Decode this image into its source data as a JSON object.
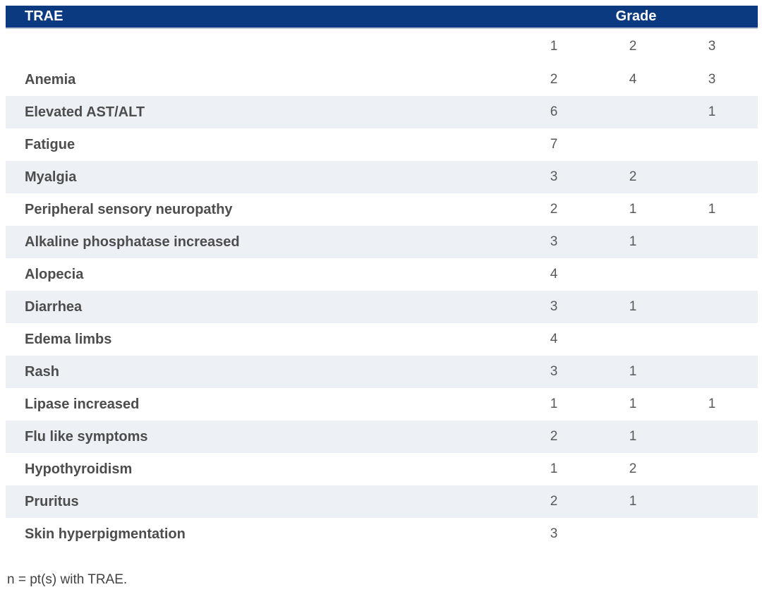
{
  "colors": {
    "header_bg": "#0b3a80",
    "header_text": "#ffffff",
    "header_border": "#b9c5d9",
    "row_shaded": "#edf0f5",
    "label_text": "#4d4d4d",
    "number_text": "#595959"
  },
  "table": {
    "header": {
      "trae_label": "TRAE",
      "grade_label": "Grade"
    },
    "grade_columns": [
      "1",
      "2",
      "3"
    ],
    "rows": [
      {
        "name": "Anemia",
        "g1": "2",
        "g2": "4",
        "g3": "3"
      },
      {
        "name": "Elevated AST/ALT",
        "g1": "6",
        "g2": "",
        "g3": "1"
      },
      {
        "name": "Fatigue",
        "g1": "7",
        "g2": "",
        "g3": ""
      },
      {
        "name": "Myalgia",
        "g1": "3",
        "g2": "2",
        "g3": ""
      },
      {
        "name": "Peripheral sensory neuropathy",
        "g1": "2",
        "g2": "1",
        "g3": "1"
      },
      {
        "name": "Alkaline phosphatase increased",
        "g1": "3",
        "g2": "1",
        "g3": ""
      },
      {
        "name": "Alopecia",
        "g1": "4",
        "g2": "",
        "g3": ""
      },
      {
        "name": "Diarrhea",
        "g1": "3",
        "g2": "1",
        "g3": ""
      },
      {
        "name": "Edema limbs",
        "g1": "4",
        "g2": "",
        "g3": ""
      },
      {
        "name": "Rash",
        "g1": "3",
        "g2": "1",
        "g3": ""
      },
      {
        "name": "Lipase increased",
        "g1": "1",
        "g2": "1",
        "g3": "1"
      },
      {
        "name": "Flu like symptoms",
        "g1": "2",
        "g2": "1",
        "g3": ""
      },
      {
        "name": "Hypothyroidism",
        "g1": "1",
        "g2": "2",
        "g3": ""
      },
      {
        "name": "Pruritus",
        "g1": "2",
        "g2": "1",
        "g3": ""
      },
      {
        "name": "Skin hyperpigmentation",
        "g1": "3",
        "g2": "",
        "g3": ""
      }
    ],
    "footnote": "n = pt(s) with TRAE."
  }
}
